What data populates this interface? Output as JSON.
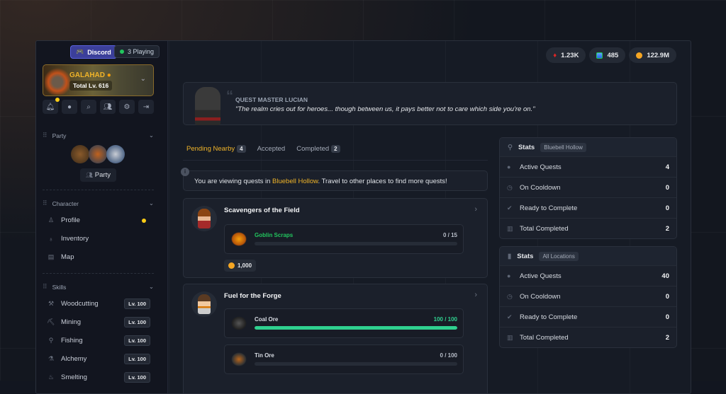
{
  "topbar": {
    "discord_label": "Discord",
    "playing_label": "3 Playing"
  },
  "player": {
    "name": "GALAHAD",
    "total_level": "Total Lv. 616"
  },
  "sidebar": {
    "party_title": "Party",
    "party_button": "Party",
    "character_title": "Character",
    "character_items": [
      {
        "label": "Profile",
        "icon": "user-icon"
      },
      {
        "label": "Inventory",
        "icon": "bag-icon"
      },
      {
        "label": "Map",
        "icon": "map-icon"
      }
    ],
    "skills_title": "Skills",
    "skills": [
      {
        "label": "Woodcutting",
        "level": "Lv. 100"
      },
      {
        "label": "Mining",
        "level": "Lv. 100"
      },
      {
        "label": "Fishing",
        "level": "Lv. 100"
      },
      {
        "label": "Alchemy",
        "level": "Lv. 100"
      },
      {
        "label": "Smelting",
        "level": "Lv. 100"
      }
    ]
  },
  "currencies": [
    {
      "icon": "red-crystal-icon",
      "value": "1.23K",
      "color": "#dc2626"
    },
    {
      "icon": "blue-gem-icon",
      "value": "485",
      "color": "#3b82f6"
    },
    {
      "icon": "gold-coin-icon",
      "value": "122.9M",
      "color": "#f5a623"
    }
  ],
  "quest_master": {
    "name": "QUEST MASTER LUCIAN",
    "quote": "\"The realm cries out for heroes... though between us, it pays better not to care which side you're on.\""
  },
  "tabs": [
    {
      "label": "Pending Nearby",
      "count": "4",
      "active": true
    },
    {
      "label": "Accepted"
    },
    {
      "label": "Completed",
      "count": "2"
    }
  ],
  "info": {
    "prefix": "You are viewing quests in ",
    "location": "Bluebell Hollow",
    "suffix": ". Travel to other places to find more quests!"
  },
  "quests": [
    {
      "title": "Scavengers of the Field",
      "objectives": [
        {
          "name": "Goblin Scraps",
          "progress": "0 / 15",
          "fraction": 0
        }
      ],
      "reward": "1,000"
    },
    {
      "title": "Fuel for the Forge",
      "objectives": [
        {
          "name": "Coal Ore",
          "progress": "100 / 100",
          "fraction": 1
        },
        {
          "name": "Tin Ore",
          "progress": "0 / 100",
          "fraction": 0
        }
      ]
    }
  ],
  "stats_local": {
    "title": "Stats",
    "tag": "Bluebell Hollow",
    "rows": [
      {
        "label": "Active Quests",
        "value": "4"
      },
      {
        "label": "On Cooldown",
        "value": "0"
      },
      {
        "label": "Ready to Complete",
        "value": "0"
      },
      {
        "label": "Total Completed",
        "value": "2"
      }
    ]
  },
  "stats_all": {
    "title": "Stats",
    "tag": "All Locations",
    "rows": [
      {
        "label": "Active Quests",
        "value": "40"
      },
      {
        "label": "On Cooldown",
        "value": "0"
      },
      {
        "label": "Ready to Complete",
        "value": "0"
      },
      {
        "label": "Total Completed",
        "value": "2"
      }
    ]
  },
  "colors": {
    "accent": "#f0b429",
    "progress": "#2fd08f",
    "objective_active": "#22c55e"
  }
}
